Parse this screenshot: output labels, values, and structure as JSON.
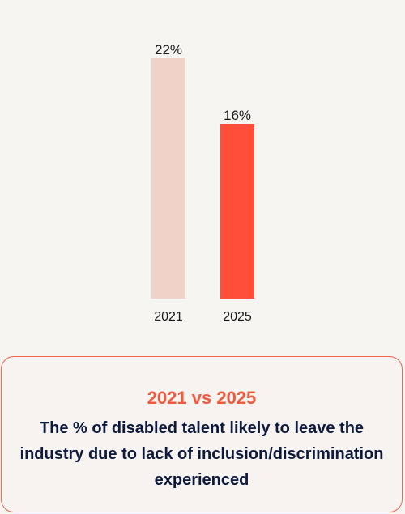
{
  "chart_data": {
    "type": "bar",
    "categories": [
      "2021",
      "2025"
    ],
    "values": [
      22,
      16
    ],
    "value_labels": [
      "22%",
      "16%"
    ],
    "colors": [
      "#f1d2c8",
      "#ff4f3a"
    ],
    "ylim": [
      0,
      22
    ],
    "grid": false,
    "axes_visible": false
  },
  "caption": {
    "heading": "2021 vs 2025",
    "text": "The % of disabled talent likely to leave the industry due to lack of inclusion/discrimination experienced"
  }
}
